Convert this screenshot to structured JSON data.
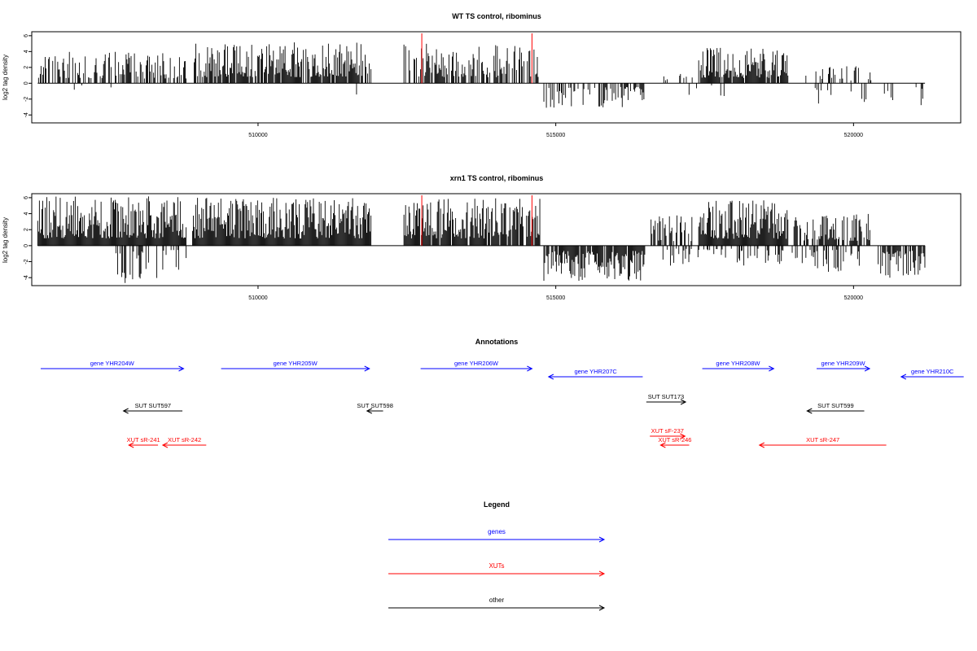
{
  "chart_data": [
    {
      "type": "bar",
      "title": "WT TS control, ribominus",
      "ylabel": "log2 tag density",
      "xlabel": "",
      "xlim": [
        506200,
        521800
      ],
      "ylim": [
        -5,
        6.5
      ],
      "yticks": [
        -4,
        -2,
        0,
        2,
        4,
        6
      ],
      "xticks": [
        510000,
        515000,
        520000
      ],
      "grid": false,
      "marker_color": "#ff0000",
      "bar_color": "#000000",
      "markers": [
        512750,
        514600
      ],
      "positive_segments": [
        {
          "start": 506300,
          "end": 508800,
          "max": 4.0,
          "density": 0.55,
          "seed": 11
        },
        {
          "start": 508900,
          "end": 511900,
          "max": 5.2,
          "density": 0.8,
          "seed": 23
        },
        {
          "start": 512450,
          "end": 514750,
          "max": 5.0,
          "density": 0.65,
          "seed": 37
        },
        {
          "start": 516800,
          "end": 517300,
          "max": 1.8,
          "density": 0.25,
          "seed": 41
        },
        {
          "start": 517400,
          "end": 518900,
          "max": 4.5,
          "density": 0.9,
          "seed": 53
        },
        {
          "start": 519200,
          "end": 520300,
          "max": 2.3,
          "density": 0.3,
          "seed": 59
        }
      ],
      "negative_segments": [
        {
          "start": 506900,
          "end": 507600,
          "min": -1.0,
          "density": 0.08,
          "seed": 61
        },
        {
          "start": 511500,
          "end": 511700,
          "min": -2.2,
          "density": 0.1,
          "seed": 67
        },
        {
          "start": 514800,
          "end": 516500,
          "min": -3.1,
          "density": 0.4,
          "seed": 71
        },
        {
          "start": 517000,
          "end": 518000,
          "min": -1.8,
          "density": 0.1,
          "seed": 73
        },
        {
          "start": 519300,
          "end": 521200,
          "min": -3.0,
          "density": 0.12,
          "seed": 79
        }
      ]
    },
    {
      "type": "bar",
      "title": "xrn1 TS control, ribominus",
      "ylabel": "log2 tag density",
      "xlabel": "",
      "xlim": [
        506200,
        521800
      ],
      "ylim": [
        -5,
        6.5
      ],
      "yticks": [
        -4,
        -2,
        0,
        2,
        4,
        6
      ],
      "xticks": [
        510000,
        515000,
        520000
      ],
      "grid": false,
      "marker_color": "#ff0000",
      "bar_color": "#000000",
      "markers": [
        512750,
        514600
      ],
      "positive_segments": [
        {
          "start": 506300,
          "end": 508800,
          "max": 6.2,
          "density": 1.0,
          "seed": 83
        },
        {
          "start": 508900,
          "end": 511900,
          "max": 6.0,
          "density": 1.0,
          "seed": 89
        },
        {
          "start": 512450,
          "end": 514750,
          "max": 6.0,
          "density": 0.9,
          "seed": 97
        },
        {
          "start": 516600,
          "end": 517300,
          "max": 3.8,
          "density": 0.5,
          "seed": 101
        },
        {
          "start": 517400,
          "end": 518900,
          "max": 5.7,
          "density": 1.0,
          "seed": 103
        },
        {
          "start": 519000,
          "end": 520300,
          "max": 4.0,
          "density": 0.7,
          "seed": 107
        }
      ],
      "negative_segments": [
        {
          "start": 507600,
          "end": 508300,
          "min": -4.7,
          "density": 0.5,
          "seed": 109
        },
        {
          "start": 508400,
          "end": 508900,
          "min": -3.2,
          "density": 0.3,
          "seed": 113
        },
        {
          "start": 514800,
          "end": 516500,
          "min": -4.4,
          "density": 0.9,
          "seed": 127
        },
        {
          "start": 516800,
          "end": 519200,
          "min": -2.5,
          "density": 0.3,
          "seed": 131
        },
        {
          "start": 519200,
          "end": 520100,
          "min": -3.3,
          "density": 0.35,
          "seed": 137
        },
        {
          "start": 520400,
          "end": 521200,
          "min": -4.2,
          "density": 0.8,
          "seed": 139
        }
      ]
    }
  ],
  "annotations": {
    "title": "Annotations",
    "genes_color": "#0000ff",
    "xuts_color": "#ff0000",
    "other_color": "#000000",
    "items": [
      {
        "label": "gene YHR204W",
        "start": 506350,
        "end": 508750,
        "dir": "right",
        "track": "genes_a",
        "kind": "genes"
      },
      {
        "label": "gene YHR205W",
        "start": 509380,
        "end": 511870,
        "dir": "right",
        "track": "genes_a",
        "kind": "genes"
      },
      {
        "label": "gene YHR206W",
        "start": 512730,
        "end": 514600,
        "dir": "right",
        "track": "genes_a",
        "kind": "genes"
      },
      {
        "label": "gene YHR207C",
        "start": 514880,
        "end": 516460,
        "dir": "left",
        "track": "genes_b",
        "kind": "genes"
      },
      {
        "label": "gene YHR208W",
        "start": 517460,
        "end": 518660,
        "dir": "right",
        "track": "genes_a",
        "kind": "genes"
      },
      {
        "label": "gene YHR209W",
        "start": 519380,
        "end": 520270,
        "dir": "right",
        "track": "genes_a",
        "kind": "genes"
      },
      {
        "label": "gene YHR210C",
        "start": 520800,
        "end": 521850,
        "dir": "left",
        "track": "genes_b",
        "kind": "genes"
      },
      {
        "label": "SUT SUT597",
        "start": 507740,
        "end": 508730,
        "dir": "left",
        "track": "other_b",
        "kind": "other"
      },
      {
        "label": "SUT SUT598",
        "start": 511830,
        "end": 512100,
        "dir": "left",
        "track": "other_b",
        "kind": "other"
      },
      {
        "label": "SUT SUT173",
        "start": 516520,
        "end": 517180,
        "dir": "right",
        "track": "other_a",
        "kind": "other"
      },
      {
        "label": "SUT SUT599",
        "start": 519220,
        "end": 520180,
        "dir": "left",
        "track": "other_b",
        "kind": "other"
      },
      {
        "label": "XUT sR-241",
        "start": 507830,
        "end": 508320,
        "dir": "left",
        "track": "xut_b",
        "kind": "xuts"
      },
      {
        "label": "XUT sR-242",
        "start": 508400,
        "end": 509130,
        "dir": "left",
        "track": "xut_b",
        "kind": "xuts"
      },
      {
        "label": "XUT sF-237",
        "start": 516580,
        "end": 517170,
        "dir": "right",
        "track": "xut_a",
        "kind": "xuts"
      },
      {
        "label": "XUT sR-246",
        "start": 516760,
        "end": 517240,
        "dir": "left",
        "track": "xut_b",
        "kind": "xuts"
      },
      {
        "label": "XUT sR-247",
        "start": 518420,
        "end": 520550,
        "dir": "left",
        "track": "xut_b",
        "kind": "xuts"
      }
    ]
  },
  "legend": {
    "title": "Legend",
    "entries": [
      {
        "label": "genes",
        "color": "#0000ff"
      },
      {
        "label": "XUTs",
        "color": "#ff0000"
      },
      {
        "label": "other",
        "color": "#000000"
      }
    ]
  }
}
